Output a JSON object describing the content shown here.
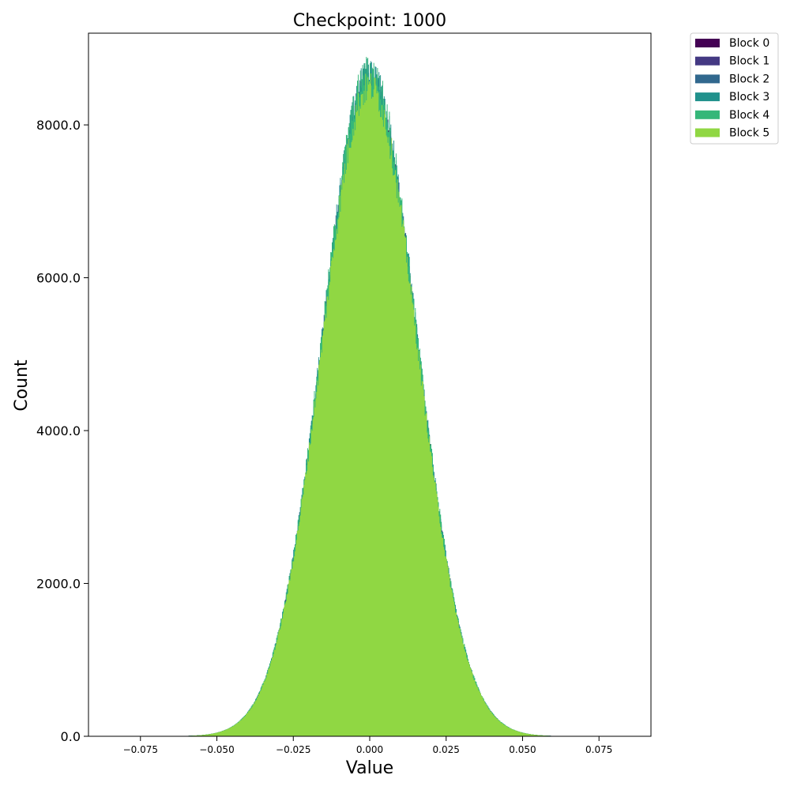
{
  "chart_data": {
    "type": "bar",
    "title": "Checkpoint: 1000",
    "xlabel": "Value",
    "ylabel": "Count",
    "xlim": [
      -0.092,
      0.092
    ],
    "ylim": [
      0,
      9200
    ],
    "xticks": [
      -0.075,
      -0.05,
      -0.025,
      0.0,
      0.025,
      0.05,
      0.075
    ],
    "xtick_labels": [
      "−0.075",
      "−0.050",
      "−0.025",
      "0.000",
      "0.025",
      "0.050",
      "0.075"
    ],
    "yticks": [
      0,
      2000,
      4000,
      6000,
      8000
    ],
    "ytick_labels": [
      "0.0",
      "2000.0",
      "4000.0",
      "6000.0",
      "8000.0"
    ],
    "grid": false,
    "legend_position": "outside-top-right",
    "histogram": {
      "value_range": [
        -0.085,
        0.085
      ],
      "bin_count": 700,
      "mean": 0.0,
      "std_dev": 0.0155,
      "peak_count": 8500
    },
    "series": [
      {
        "name": "Block 0",
        "color": "#440154",
        "amplitude": 1.0
      },
      {
        "name": "Block 1",
        "color": "#443983",
        "amplitude": 1.0
      },
      {
        "name": "Block 2",
        "color": "#31688e",
        "amplitude": 1.01
      },
      {
        "name": "Block 3",
        "color": "#21918c",
        "amplitude": 1.02
      },
      {
        "name": "Block 4",
        "color": "#35b779",
        "amplitude": 1.025
      },
      {
        "name": "Block 5",
        "color": "#90d743",
        "amplitude": 1.0
      }
    ]
  }
}
